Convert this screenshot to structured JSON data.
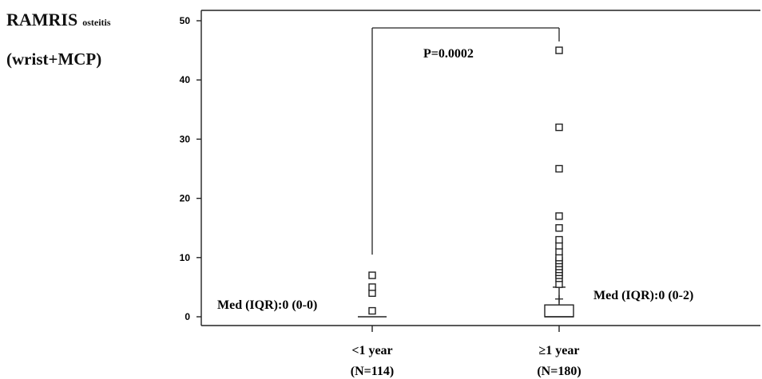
{
  "chart_data": {
    "type": "box",
    "ylabel_main": "RAMRIS",
    "ylabel_sub": "osteitis",
    "ylabel_line2": "(wrist+MCP)",
    "ylim": [
      0,
      50
    ],
    "yticks": [
      0,
      10,
      20,
      30,
      40,
      50
    ],
    "ytick_labels": [
      "0",
      "10",
      "20",
      "30",
      "40",
      "50"
    ],
    "categories": [
      {
        "label": "<1 year",
        "n_label": "(N=114)"
      },
      {
        "label": "≥1 year",
        "n_label": "(N=180)"
      }
    ],
    "boxes": [
      {
        "category": "<1 year",
        "q1": 0,
        "median": 0,
        "q3": 0,
        "whisker_low": 0,
        "whisker_high": 0,
        "mean": 0,
        "outliers": [
          1,
          4,
          5,
          7
        ]
      },
      {
        "category": "≥1 year",
        "q1": 0,
        "median": 0,
        "q3": 2,
        "whisker_low": 0,
        "whisker_high": 5,
        "mean": 3,
        "outliers": [
          5.5,
          6.5,
          7,
          7.5,
          8,
          8.5,
          9,
          9.5,
          10,
          11,
          12,
          13,
          15,
          17,
          25,
          32,
          45
        ]
      }
    ],
    "annotations": [
      {
        "text": "Med (IQR):0 (0-0)"
      },
      {
        "text": "Med (IQR):0 (0-2)"
      },
      {
        "text": "P=0.0002"
      }
    ],
    "significance_bracket": {
      "between": [
        "<1 year",
        "≥1 year"
      ],
      "label": "P=0.0002",
      "level": 50
    }
  }
}
